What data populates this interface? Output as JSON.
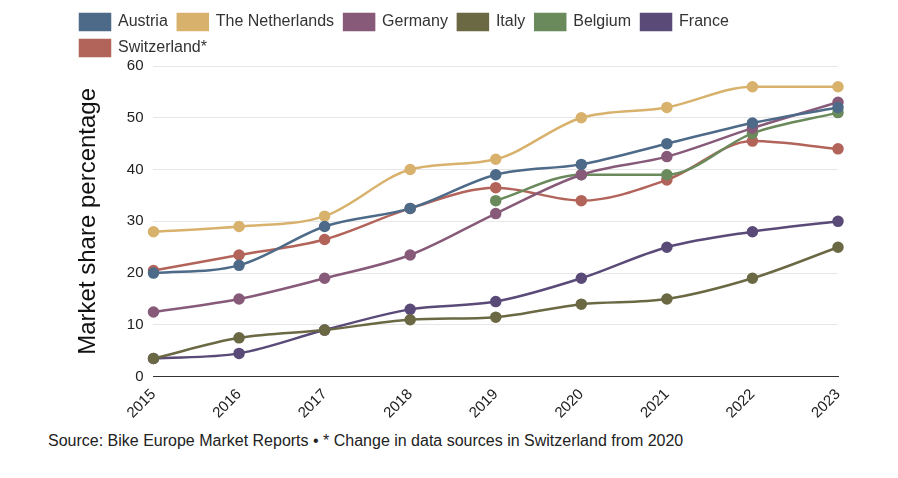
{
  "chart_data": {
    "type": "line",
    "y_label": "Market share percentage",
    "caption": "Source: Bike Europe Market Reports • * Change in data sources in Switzerland from 2020",
    "categories": [
      "2015",
      "2016",
      "2017",
      "2018",
      "2019",
      "2020",
      "2021",
      "2022",
      "2023"
    ],
    "series": [
      {
        "name": "Austria",
        "color": "#4d6a88",
        "values": [
          20,
          21.5,
          29,
          32.5,
          39,
          41,
          45,
          49,
          52
        ]
      },
      {
        "name": "The Netherlands",
        "color": "#d8b26c",
        "values": [
          28,
          29,
          31,
          40,
          42,
          50,
          52,
          56,
          56
        ]
      },
      {
        "name": "Germany",
        "color": "#875a79",
        "values": [
          12.5,
          15,
          19,
          23.5,
          31.5,
          39,
          42.5,
          48,
          53
        ]
      },
      {
        "name": "Italy",
        "color": "#6b6944",
        "values": [
          3.5,
          7.5,
          9,
          11,
          11.5,
          14,
          15,
          19,
          25
        ]
      },
      {
        "name": "Belgium",
        "color": "#6a8a5c",
        "values": [
          null,
          null,
          null,
          null,
          34,
          39,
          39,
          47,
          51
        ]
      },
      {
        "name": "France",
        "color": "#5a4a78",
        "values": [
          3.5,
          4.5,
          9,
          13,
          14.5,
          19,
          25,
          28,
          30
        ]
      },
      {
        "name": "Switzerland*",
        "color": "#b2645a",
        "values": [
          20.5,
          23.5,
          26.5,
          32.5,
          36.5,
          34,
          38,
          45.5,
          44
        ]
      }
    ],
    "ylim": [
      0,
      60
    ],
    "yticks": [
      0,
      10,
      20,
      30,
      40,
      50,
      60
    ],
    "grid": true,
    "legend": "top-left",
    "marker": "circle",
    "line_style": "solid"
  }
}
